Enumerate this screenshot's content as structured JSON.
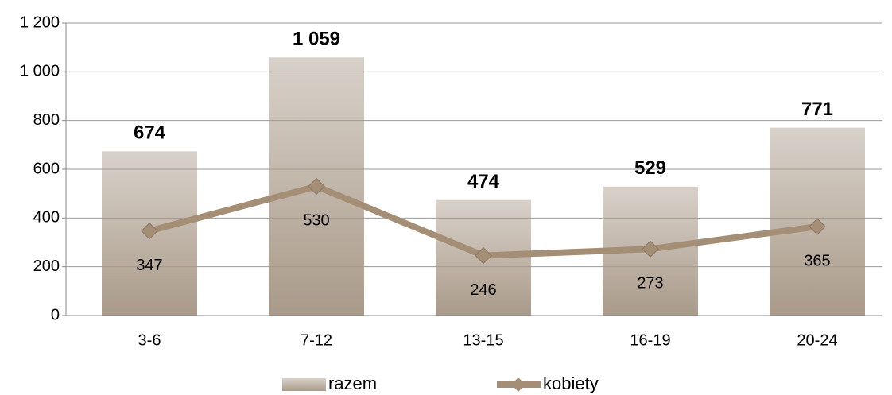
{
  "chart_data": {
    "type": "combo",
    "categories": [
      "3-6",
      "7-12",
      "13-15",
      "16-19",
      "20-24"
    ],
    "series": [
      {
        "name": "razem",
        "type": "bar",
        "color": "#a99a89",
        "values": [
          674,
          1059,
          474,
          529,
          771
        ],
        "value_labels": [
          "674",
          "1 059",
          "474",
          "529",
          "771"
        ]
      },
      {
        "name": "kobiety",
        "type": "line",
        "color": "#a58e76",
        "values": [
          347,
          530,
          246,
          273,
          365
        ]
      }
    ],
    "ylim": [
      0,
      1200
    ],
    "yticks": [
      0,
      200,
      400,
      600,
      800,
      {
        "value": 1000,
        "label": "1 000"
      },
      {
        "value": 1200,
        "label": "1 200"
      }
    ],
    "grid": true,
    "legend": "bottom"
  }
}
